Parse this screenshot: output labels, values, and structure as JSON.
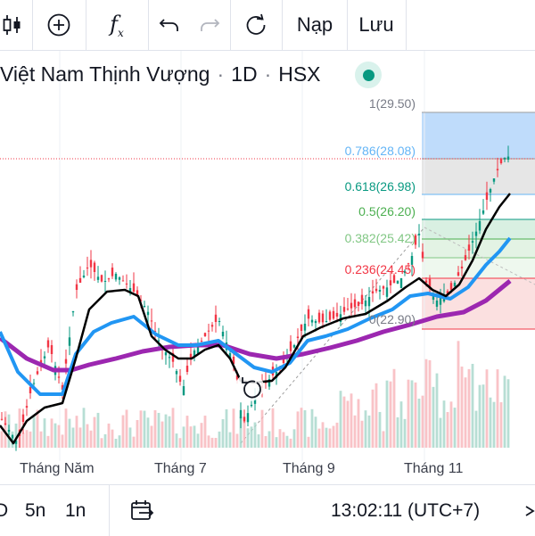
{
  "toolbar": {
    "indicator_label": "f",
    "indicator_sub": "x",
    "load_label": "Nạp",
    "save_label": "Lưu"
  },
  "header": {
    "symbol_name": "Việt Nam Thịnh Vượng",
    "separator": "·",
    "interval": "1D",
    "exchange": "HSX",
    "status_color": "#089981"
  },
  "fib_levels": [
    {
      "ratio": "1",
      "price": "29.50",
      "color": "#787b86"
    },
    {
      "ratio": "0.786",
      "price": "28.08",
      "color": "#64b5f6"
    },
    {
      "ratio": "0.618",
      "price": "26.98",
      "color": "#089981"
    },
    {
      "ratio": "0.5",
      "price": "26.20",
      "color": "#4caf50"
    },
    {
      "ratio": "0.382",
      "price": "25.42",
      "color": "#81c784"
    },
    {
      "ratio": "0.236",
      "price": "24.45",
      "color": "#f23645"
    },
    {
      "ratio": "0",
      "price": "22.90",
      "color": "#787b86"
    }
  ],
  "x_axis": {
    "labels": [
      "Tháng Năm",
      "Tháng 7",
      "Tháng 9",
      "Tháng 11"
    ]
  },
  "bottom_bar": {
    "intervals": [
      "D",
      "5n",
      "1n"
    ],
    "clock": "13:02:11 (UTC+7)"
  },
  "colors": {
    "up": "#089981",
    "down": "#f23645",
    "ma_fast": "#000000",
    "ma_mid": "#2196f3",
    "ma_slow": "#9c27b0"
  }
}
